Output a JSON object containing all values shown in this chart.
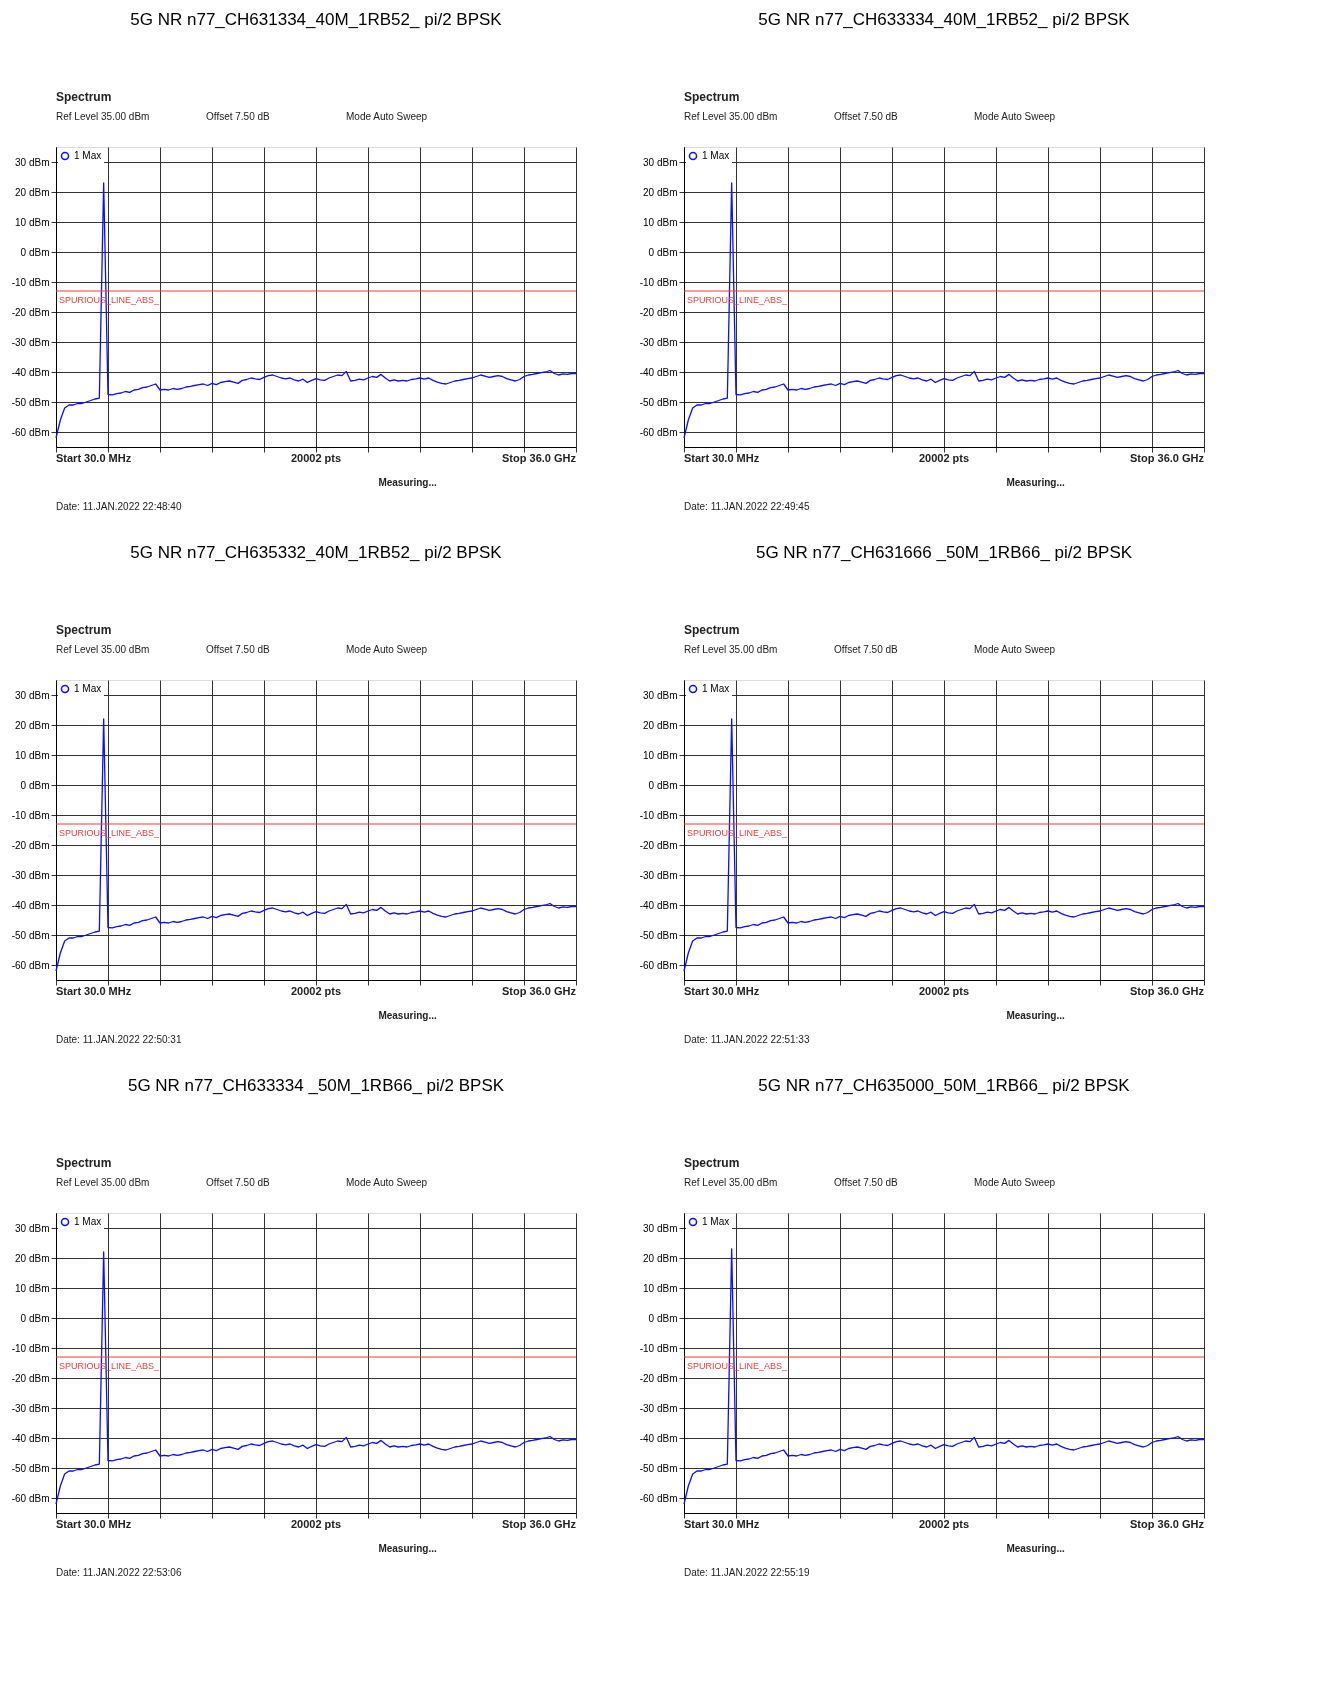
{
  "chart_data": [
    {
      "type": "line",
      "title": "5G NR n77_CH631334_40M_1RB52_ pi/2 BPSK",
      "annotations": [
        "Spectrum",
        "Ref Level 35.00 dBm",
        "Offset 7.50 dB",
        "Mode Auto Sweep",
        "Start 30.0 MHz",
        "20002 pts",
        "Stop 36.0 GHz",
        "Measuring...",
        "Date: 11.JAN.2022 22:48:40"
      ],
      "tick_labels": "y",
      "ylim": [
        -65,
        35
      ],
      "yticks": [
        {
          "value": 30,
          "label": "30 dBm"
        },
        {
          "value": 20,
          "label": "20 dBm"
        },
        {
          "value": 10,
          "label": "10 dBm"
        },
        {
          "value": 0,
          "label": "0 dBm"
        },
        {
          "value": -10,
          "label": "-10 dBm"
        },
        {
          "value": -20,
          "label": "-20 dBm"
        },
        {
          "value": -30,
          "label": "-30 dBm"
        },
        {
          "value": -40,
          "label": "-40 dBm"
        },
        {
          "value": -50,
          "label": "-50 dBm"
        },
        {
          "value": -60,
          "label": "-60 dBm"
        }
      ],
      "grid": true,
      "legend": "top left",
      "ref_lines": [
        {
          "axis": "y",
          "value": -13,
          "label": "SPURIOUS_LINE_ABS_",
          "color": "#f03c3c"
        }
      ],
      "categories": [
        null,
        null,
        null,
        null,
        null,
        null,
        null,
        null,
        null,
        null,
        null,
        null,
        null,
        null,
        null,
        null,
        null,
        null,
        null,
        null,
        null,
        null,
        null,
        null,
        null,
        null,
        null,
        null,
        null,
        null,
        null,
        null,
        null,
        null,
        null,
        null,
        null,
        null,
        null,
        null,
        null,
        null,
        null,
        null,
        null,
        null,
        null,
        null,
        null,
        null,
        null,
        null,
        null,
        null,
        null,
        null,
        null,
        null,
        null,
        null,
        null,
        null,
        null,
        null,
        null,
        null,
        null,
        null,
        null,
        null,
        null,
        null,
        null,
        null,
        null,
        null,
        null,
        null,
        null,
        null,
        null,
        null,
        null,
        null,
        null,
        null,
        null,
        null,
        null,
        null,
        null,
        null,
        null,
        null,
        null,
        null,
        null,
        null,
        null,
        null,
        null,
        null,
        null,
        null,
        null,
        null,
        null,
        null,
        null,
        null,
        null,
        null,
        null,
        null,
        null,
        null,
        null,
        null,
        null,
        null,
        null
      ],
      "series": [
        {
          "name": "1 Max",
          "color": "#0d0dff",
          "values": [
            -62,
            -56,
            -52,
            -51,
            -51,
            -50.5,
            -50.5,
            -50,
            -49.5,
            -49,
            -48.7,
            23,
            -47.5,
            -47.6,
            -47.2,
            -47,
            -46.5,
            -46.8,
            -46,
            -45.8,
            -45.2,
            -45,
            -44.5,
            -44,
            -46,
            -45.8,
            -46,
            -45.5,
            -45.8,
            -45.5,
            -45,
            -44.8,
            -44.5,
            -44.2,
            -44,
            -44.5,
            -43.8,
            -44.2,
            -43.5,
            -43.2,
            -43,
            -43.4,
            -43.8,
            -42.8,
            -42.5,
            -42,
            -42.3,
            -42.5,
            -41.8,
            -41.2,
            -41,
            -41.5,
            -42,
            -42.3,
            -42,
            -42.6,
            -43,
            -42.4,
            -43.5,
            -42.8,
            -42.2,
            -42.6,
            -42.8,
            -42,
            -41.5,
            -41,
            -41.2,
            -39.8,
            -43,
            -42.8,
            -42.4,
            -42.6,
            -42,
            -41.5,
            -41.8,
            -40.8,
            -42,
            -43,
            -42.6,
            -43,
            -42.8,
            -43,
            -42.5,
            -42.3,
            -42,
            -42.4,
            -42,
            -42.8,
            -43.4,
            -43.8,
            -44,
            -43.5,
            -43,
            -42.8,
            -42.5,
            -42.2,
            -42,
            -41.5,
            -41,
            -41.4,
            -41.8,
            -41.5,
            -41.2,
            -41.5,
            -42.2,
            -42.6,
            -43,
            -42.5,
            -41.5,
            -41,
            -40.8,
            -40.5,
            -40.2,
            -40,
            -39.5,
            -40.5,
            -41,
            -40.6,
            -40.8,
            -40.5,
            -40.5
          ]
        }
      ]
    },
    {
      "type": "line",
      "title": "5G NR n77_CH633334_40M_1RB52_ pi/2 BPSK",
      "annotations": [
        "Spectrum",
        "Ref Level 35.00 dBm",
        "Offset 7.50 dB",
        "Mode Auto Sweep",
        "Start 30.0 MHz",
        "20002 pts",
        "Stop 36.0 GHz",
        "Measuring...",
        "Date: 11.JAN.2022 22:49:45"
      ],
      "tick_labels": "y",
      "ylim": [
        -65,
        35
      ],
      "yticks": [
        {
          "value": 30,
          "label": "30 dBm"
        },
        {
          "value": 20,
          "label": "20 dBm"
        },
        {
          "value": 10,
          "label": "10 dBm"
        },
        {
          "value": 0,
          "label": "0 dBm"
        },
        {
          "value": -10,
          "label": "-10 dBm"
        },
        {
          "value": -20,
          "label": "-20 dBm"
        },
        {
          "value": -30,
          "label": "-30 dBm"
        },
        {
          "value": -40,
          "label": "-40 dBm"
        },
        {
          "value": -50,
          "label": "-50 dBm"
        },
        {
          "value": -60,
          "label": "-60 dBm"
        }
      ],
      "grid": true,
      "legend": "top left",
      "ref_lines": [
        {
          "axis": "y",
          "value": -13,
          "label": "SPURIOUS_LINE_ABS_",
          "color": "#f03c3c"
        }
      ],
      "categories": [
        null,
        null,
        null,
        null,
        null,
        null,
        null,
        null,
        null,
        null,
        null,
        null,
        null,
        null,
        null,
        null,
        null,
        null,
        null,
        null,
        null,
        null,
        null,
        null,
        null,
        null,
        null,
        null,
        null,
        null,
        null,
        null,
        null,
        null,
        null,
        null,
        null,
        null,
        null,
        null,
        null,
        null,
        null,
        null,
        null,
        null,
        null,
        null,
        null,
        null,
        null,
        null,
        null,
        null,
        null,
        null,
        null,
        null,
        null,
        null,
        null,
        null,
        null,
        null,
        null,
        null,
        null,
        null,
        null,
        null,
        null,
        null,
        null,
        null,
        null,
        null,
        null,
        null,
        null,
        null,
        null,
        null,
        null,
        null,
        null,
        null,
        null,
        null,
        null,
        null,
        null,
        null,
        null,
        null,
        null,
        null,
        null,
        null,
        null,
        null,
        null,
        null,
        null,
        null,
        null,
        null,
        null,
        null,
        null,
        null,
        null,
        null,
        null,
        null,
        null,
        null,
        null,
        null,
        null,
        null,
        null
      ],
      "series": [
        {
          "name": "1 Max",
          "color": "#0d0dff",
          "values": [
            -62,
            -56,
            -52,
            -51,
            -51,
            -50.5,
            -50.5,
            -50,
            -49.5,
            -49,
            -48.7,
            23,
            -47.5,
            -47.6,
            -47.2,
            -47,
            -46.5,
            -46.8,
            -46,
            -45.8,
            -45.2,
            -45,
            -44.5,
            -44,
            -46,
            -45.8,
            -46,
            -45.5,
            -45.8,
            -45.5,
            -45,
            -44.8,
            -44.5,
            -44.2,
            -44,
            -44.5,
            -43.8,
            -44.2,
            -43.5,
            -43.2,
            -43,
            -43.4,
            -43.8,
            -42.8,
            -42.5,
            -42,
            -42.3,
            -42.5,
            -41.8,
            -41.2,
            -41,
            -41.5,
            -42,
            -42.3,
            -42,
            -42.6,
            -43,
            -42.4,
            -43.5,
            -42.8,
            -42.2,
            -42.6,
            -42.8,
            -42,
            -41.5,
            -41,
            -41.2,
            -39.8,
            -43,
            -42.8,
            -42.4,
            -42.6,
            -42,
            -41.5,
            -41.8,
            -40.8,
            -42,
            -43,
            -42.6,
            -43,
            -42.8,
            -43,
            -42.5,
            -42.3,
            -42,
            -42.4,
            -42,
            -42.8,
            -43.4,
            -43.8,
            -44,
            -43.5,
            -43,
            -42.8,
            -42.5,
            -42.2,
            -42,
            -41.5,
            -41,
            -41.4,
            -41.8,
            -41.5,
            -41.2,
            -41.5,
            -42.2,
            -42.6,
            -43,
            -42.5,
            -41.5,
            -41,
            -40.8,
            -40.5,
            -40.2,
            -40,
            -39.5,
            -40.5,
            -41,
            -40.6,
            -40.8,
            -40.5,
            -40.5
          ]
        }
      ]
    },
    {
      "type": "line",
      "title": "5G NR n77_CH635332_40M_1RB52_ pi/2 BPSK",
      "annotations": [
        "Spectrum",
        "Ref Level 35.00 dBm",
        "Offset 7.50 dB",
        "Mode Auto Sweep",
        "Start 30.0 MHz",
        "20002 pts",
        "Stop 36.0 GHz",
        "Measuring...",
        "Date: 11.JAN.2022 22:50:31"
      ],
      "tick_labels": "y",
      "ylim": [
        -65,
        35
      ],
      "yticks": [
        {
          "value": 30,
          "label": "30 dBm"
        },
        {
          "value": 20,
          "label": "20 dBm"
        },
        {
          "value": 10,
          "label": "10 dBm"
        },
        {
          "value": 0,
          "label": "0 dBm"
        },
        {
          "value": -10,
          "label": "-10 dBm"
        },
        {
          "value": -20,
          "label": "-20 dBm"
        },
        {
          "value": -30,
          "label": "-30 dBm"
        },
        {
          "value": -40,
          "label": "-40 dBm"
        },
        {
          "value": -50,
          "label": "-50 dBm"
        },
        {
          "value": -60,
          "label": "-60 dBm"
        }
      ],
      "grid": true,
      "legend": "top left",
      "ref_lines": [
        {
          "axis": "y",
          "value": -13,
          "label": "SPURIOUS_LINE_ABS_",
          "color": "#f03c3c"
        }
      ],
      "categories": [
        null,
        null,
        null,
        null,
        null,
        null,
        null,
        null,
        null,
        null,
        null,
        null,
        null,
        null,
        null,
        null,
        null,
        null,
        null,
        null,
        null,
        null,
        null,
        null,
        null,
        null,
        null,
        null,
        null,
        null,
        null,
        null,
        null,
        null,
        null,
        null,
        null,
        null,
        null,
        null,
        null,
        null,
        null,
        null,
        null,
        null,
        null,
        null,
        null,
        null,
        null,
        null,
        null,
        null,
        null,
        null,
        null,
        null,
        null,
        null,
        null,
        null,
        null,
        null,
        null,
        null,
        null,
        null,
        null,
        null,
        null,
        null,
        null,
        null,
        null,
        null,
        null,
        null,
        null,
        null,
        null,
        null,
        null,
        null,
        null,
        null,
        null,
        null,
        null,
        null,
        null,
        null,
        null,
        null,
        null,
        null,
        null,
        null,
        null,
        null,
        null,
        null,
        null,
        null,
        null,
        null,
        null,
        null,
        null,
        null,
        null,
        null,
        null,
        null,
        null,
        null,
        null,
        null,
        null,
        null,
        null
      ],
      "series": [
        {
          "name": "1 Max",
          "color": "#0d0dff",
          "values": [
            -62,
            -56,
            -52,
            -51,
            -51,
            -50.5,
            -50.5,
            -50,
            -49.5,
            -49,
            -48.7,
            22,
            -47.5,
            -47.6,
            -47.2,
            -47,
            -46.5,
            -46.8,
            -46,
            -45.8,
            -45.2,
            -45,
            -44.5,
            -44,
            -46,
            -45.8,
            -46,
            -45.5,
            -45.8,
            -45.5,
            -45,
            -44.8,
            -44.5,
            -44.2,
            -44,
            -44.5,
            -43.8,
            -44.2,
            -43.5,
            -43.2,
            -43,
            -43.4,
            -43.8,
            -42.8,
            -42.5,
            -42,
            -42.3,
            -42.5,
            -41.8,
            -41.2,
            -41,
            -41.5,
            -42,
            -42.3,
            -42,
            -42.6,
            -43,
            -42.4,
            -43.5,
            -42.8,
            -42.2,
            -42.6,
            -42.8,
            -42,
            -41.5,
            -41,
            -41.2,
            -39.8,
            -43,
            -42.8,
            -42.4,
            -42.6,
            -42,
            -41.5,
            -41.8,
            -40.8,
            -42,
            -43,
            -42.6,
            -43,
            -42.8,
            -43,
            -42.5,
            -42.3,
            -42,
            -42.4,
            -42,
            -42.8,
            -43.4,
            -43.8,
            -44,
            -43.5,
            -43,
            -42.8,
            -42.5,
            -42.2,
            -42,
            -41.5,
            -41,
            -41.4,
            -41.8,
            -41.5,
            -41.2,
            -41.5,
            -42.2,
            -42.6,
            -43,
            -42.5,
            -41.5,
            -41,
            -40.8,
            -40.5,
            -40.2,
            -40,
            -39.5,
            -40.5,
            -41,
            -40.6,
            -40.8,
            -40.5,
            -40.5
          ]
        }
      ]
    },
    {
      "type": "line",
      "title": "5G NR n77_CH631666 _50M_1RB66_ pi/2 BPSK",
      "annotations": [
        "Spectrum",
        "Ref Level 35.00 dBm",
        "Offset 7.50 dB",
        "Mode Auto Sweep",
        "Start 30.0 MHz",
        "20002 pts",
        "Stop 36.0 GHz",
        "Measuring...",
        "Date: 11.JAN.2022 22:51:33"
      ],
      "tick_labels": "y",
      "ylim": [
        -65,
        35
      ],
      "yticks": [
        {
          "value": 30,
          "label": "30 dBm"
        },
        {
          "value": 20,
          "label": "20 dBm"
        },
        {
          "value": 10,
          "label": "10 dBm"
        },
        {
          "value": 0,
          "label": "0 dBm"
        },
        {
          "value": -10,
          "label": "-10 dBm"
        },
        {
          "value": -20,
          "label": "-20 dBm"
        },
        {
          "value": -30,
          "label": "-30 dBm"
        },
        {
          "value": -40,
          "label": "-40 dBm"
        },
        {
          "value": -50,
          "label": "-50 dBm"
        },
        {
          "value": -60,
          "label": "-60 dBm"
        }
      ],
      "grid": true,
      "legend": "top left",
      "ref_lines": [
        {
          "axis": "y",
          "value": -13,
          "label": "SPURIOUS_LINE_ABS_",
          "color": "#f03c3c"
        }
      ],
      "categories": [
        null,
        null,
        null,
        null,
        null,
        null,
        null,
        null,
        null,
        null,
        null,
        null,
        null,
        null,
        null,
        null,
        null,
        null,
        null,
        null,
        null,
        null,
        null,
        null,
        null,
        null,
        null,
        null,
        null,
        null,
        null,
        null,
        null,
        null,
        null,
        null,
        null,
        null,
        null,
        null,
        null,
        null,
        null,
        null,
        null,
        null,
        null,
        null,
        null,
        null,
        null,
        null,
        null,
        null,
        null,
        null,
        null,
        null,
        null,
        null,
        null,
        null,
        null,
        null,
        null,
        null,
        null,
        null,
        null,
        null,
        null,
        null,
        null,
        null,
        null,
        null,
        null,
        null,
        null,
        null,
        null,
        null,
        null,
        null,
        null,
        null,
        null,
        null,
        null,
        null,
        null,
        null,
        null,
        null,
        null,
        null,
        null,
        null,
        null,
        null,
        null,
        null,
        null,
        null,
        null,
        null,
        null,
        null,
        null,
        null,
        null,
        null,
        null,
        null,
        null,
        null,
        null,
        null,
        null,
        null,
        null
      ],
      "series": [
        {
          "name": "1 Max",
          "color": "#0d0dff",
          "values": [
            -62,
            -56,
            -52,
            -51,
            -51,
            -50.5,
            -50.5,
            -50,
            -49.5,
            -49,
            -48.7,
            22,
            -47.5,
            -47.6,
            -47.2,
            -47,
            -46.5,
            -46.8,
            -46,
            -45.8,
            -45.2,
            -45,
            -44.5,
            -44,
            -46,
            -45.8,
            -46,
            -45.5,
            -45.8,
            -45.5,
            -45,
            -44.8,
            -44.5,
            -44.2,
            -44,
            -44.5,
            -43.8,
            -44.2,
            -43.5,
            -43.2,
            -43,
            -43.4,
            -43.8,
            -42.8,
            -42.5,
            -42,
            -42.3,
            -42.5,
            -41.8,
            -41.2,
            -41,
            -41.5,
            -42,
            -42.3,
            -42,
            -42.6,
            -43,
            -42.4,
            -43.5,
            -42.8,
            -42.2,
            -42.6,
            -42.8,
            -42,
            -41.5,
            -41,
            -41.2,
            -39.8,
            -43,
            -42.8,
            -42.4,
            -42.6,
            -42,
            -41.5,
            -41.8,
            -40.8,
            -42,
            -43,
            -42.6,
            -43,
            -42.8,
            -43,
            -42.5,
            -42.3,
            -42,
            -42.4,
            -42,
            -42.8,
            -43.4,
            -43.8,
            -44,
            -43.5,
            -43,
            -42.8,
            -42.5,
            -42.2,
            -42,
            -41.5,
            -41,
            -41.4,
            -41.8,
            -41.5,
            -41.2,
            -41.5,
            -42.2,
            -42.6,
            -43,
            -42.5,
            -41.5,
            -41,
            -40.8,
            -40.5,
            -40.2,
            -40,
            -39.5,
            -40.5,
            -41,
            -40.6,
            -40.8,
            -40.5,
            -40.5
          ]
        }
      ]
    },
    {
      "type": "line",
      "title": "5G NR n77_CH633334 _50M_1RB66_ pi/2 BPSK",
      "annotations": [
        "Spectrum",
        "Ref Level 35.00 dBm",
        "Offset 7.50 dB",
        "Mode Auto Sweep",
        "Start 30.0 MHz",
        "20002 pts",
        "Stop 36.0 GHz",
        "Measuring...",
        "Date: 11.JAN.2022 22:53:06"
      ],
      "tick_labels": "y",
      "ylim": [
        -65,
        35
      ],
      "yticks": [
        {
          "value": 30,
          "label": "30 dBm"
        },
        {
          "value": 20,
          "label": "20 dBm"
        },
        {
          "value": 10,
          "label": "10 dBm"
        },
        {
          "value": 0,
          "label": "0 dBm"
        },
        {
          "value": -10,
          "label": "-10 dBm"
        },
        {
          "value": -20,
          "label": "-20 dBm"
        },
        {
          "value": -30,
          "label": "-30 dBm"
        },
        {
          "value": -40,
          "label": "-40 dBm"
        },
        {
          "value": -50,
          "label": "-50 dBm"
        },
        {
          "value": -60,
          "label": "-60 dBm"
        }
      ],
      "grid": true,
      "legend": "top left",
      "ref_lines": [
        {
          "axis": "y",
          "value": -13,
          "label": "SPURIOUS_LINE_ABS_",
          "color": "#f03c3c"
        }
      ],
      "categories": [
        null,
        null,
        null,
        null,
        null,
        null,
        null,
        null,
        null,
        null,
        null,
        null,
        null,
        null,
        null,
        null,
        null,
        null,
        null,
        null,
        null,
        null,
        null,
        null,
        null,
        null,
        null,
        null,
        null,
        null,
        null,
        null,
        null,
        null,
        null,
        null,
        null,
        null,
        null,
        null,
        null,
        null,
        null,
        null,
        null,
        null,
        null,
        null,
        null,
        null,
        null,
        null,
        null,
        null,
        null,
        null,
        null,
        null,
        null,
        null,
        null,
        null,
        null,
        null,
        null,
        null,
        null,
        null,
        null,
        null,
        null,
        null,
        null,
        null,
        null,
        null,
        null,
        null,
        null,
        null,
        null,
        null,
        null,
        null,
        null,
        null,
        null,
        null,
        null,
        null,
        null,
        null,
        null,
        null,
        null,
        null,
        null,
        null,
        null,
        null,
        null,
        null,
        null,
        null,
        null,
        null,
        null,
        null,
        null,
        null,
        null,
        null,
        null,
        null,
        null,
        null,
        null,
        null,
        null,
        null,
        null
      ],
      "series": [
        {
          "name": "1 Max",
          "color": "#0d0dff",
          "values": [
            -62,
            -56,
            -52,
            -51,
            -51,
            -50.5,
            -50.5,
            -50,
            -49.5,
            -49,
            -48.7,
            22,
            -47.5,
            -47.6,
            -47.2,
            -47,
            -46.5,
            -46.8,
            -46,
            -45.8,
            -45.2,
            -45,
            -44.5,
            -44,
            -46,
            -45.8,
            -46,
            -45.5,
            -45.8,
            -45.5,
            -45,
            -44.8,
            -44.5,
            -44.2,
            -44,
            -44.5,
            -43.8,
            -44.2,
            -43.5,
            -43.2,
            -43,
            -43.4,
            -43.8,
            -42.8,
            -42.5,
            -42,
            -42.3,
            -42.5,
            -41.8,
            -41.2,
            -41,
            -41.5,
            -42,
            -42.3,
            -42,
            -42.6,
            -43,
            -42.4,
            -43.5,
            -42.8,
            -42.2,
            -42.6,
            -42.8,
            -42,
            -41.5,
            -41,
            -41.2,
            -39.8,
            -43,
            -42.8,
            -42.4,
            -42.6,
            -42,
            -41.5,
            -41.8,
            -40.8,
            -42,
            -43,
            -42.6,
            -43,
            -42.8,
            -43,
            -42.5,
            -42.3,
            -42,
            -42.4,
            -42,
            -42.8,
            -43.4,
            -43.8,
            -44,
            -43.5,
            -43,
            -42.8,
            -42.5,
            -42.2,
            -42,
            -41.5,
            -41,
            -41.4,
            -41.8,
            -41.5,
            -41.2,
            -41.5,
            -42.2,
            -42.6,
            -43,
            -42.5,
            -41.5,
            -41,
            -40.8,
            -40.5,
            -40.2,
            -40,
            -39.5,
            -40.5,
            -41,
            -40.6,
            -40.8,
            -40.5,
            -40.5
          ]
        }
      ]
    },
    {
      "type": "line",
      "title": "5G NR n77_CH635000_50M_1RB66_ pi/2 BPSK",
      "annotations": [
        "Spectrum",
        "Ref Level 35.00 dBm",
        "Offset 7.50 dB",
        "Mode Auto Sweep",
        "Start 30.0 MHz",
        "20002 pts",
        "Stop 36.0 GHz",
        "Measuring...",
        "Date: 11.JAN.2022 22:55:19"
      ],
      "tick_labels": "y",
      "ylim": [
        -65,
        35
      ],
      "yticks": [
        {
          "value": 30,
          "label": "30 dBm"
        },
        {
          "value": 20,
          "label": "20 dBm"
        },
        {
          "value": 10,
          "label": "10 dBm"
        },
        {
          "value": 0,
          "label": "0 dBm"
        },
        {
          "value": -10,
          "label": "-10 dBm"
        },
        {
          "value": -20,
          "label": "-20 dBm"
        },
        {
          "value": -30,
          "label": "-30 dBm"
        },
        {
          "value": -40,
          "label": "-40 dBm"
        },
        {
          "value": -50,
          "label": "-50 dBm"
        },
        {
          "value": -60,
          "label": "-60 dBm"
        }
      ],
      "grid": true,
      "legend": "top left",
      "ref_lines": [
        {
          "axis": "y",
          "value": -13,
          "label": "SPURIOUS_LINE_ABS_",
          "color": "#f03c3c"
        }
      ],
      "categories": [
        null,
        null,
        null,
        null,
        null,
        null,
        null,
        null,
        null,
        null,
        null,
        null,
        null,
        null,
        null,
        null,
        null,
        null,
        null,
        null,
        null,
        null,
        null,
        null,
        null,
        null,
        null,
        null,
        null,
        null,
        null,
        null,
        null,
        null,
        null,
        null,
        null,
        null,
        null,
        null,
        null,
        null,
        null,
        null,
        null,
        null,
        null,
        null,
        null,
        null,
        null,
        null,
        null,
        null,
        null,
        null,
        null,
        null,
        null,
        null,
        null,
        null,
        null,
        null,
        null,
        null,
        null,
        null,
        null,
        null,
        null,
        null,
        null,
        null,
        null,
        null,
        null,
        null,
        null,
        null,
        null,
        null,
        null,
        null,
        null,
        null,
        null,
        null,
        null,
        null,
        null,
        null,
        null,
        null,
        null,
        null,
        null,
        null,
        null,
        null,
        null,
        null,
        null,
        null,
        null,
        null,
        null,
        null,
        null,
        null,
        null,
        null,
        null,
        null,
        null,
        null,
        null,
        null,
        null,
        null,
        null
      ],
      "series": [
        {
          "name": "1 Max",
          "color": "#0d0dff",
          "values": [
            -62,
            -56,
            -52,
            -51,
            -51,
            -50.5,
            -50.5,
            -50,
            -49.5,
            -49,
            -48.7,
            23,
            -47.5,
            -47.6,
            -47.2,
            -47,
            -46.5,
            -46.8,
            -46,
            -45.8,
            -45.2,
            -45,
            -44.5,
            -44,
            -46,
            -45.8,
            -46,
            -45.5,
            -45.8,
            -45.5,
            -45,
            -44.8,
            -44.5,
            -44.2,
            -44,
            -44.5,
            -43.8,
            -44.2,
            -43.5,
            -43.2,
            -43,
            -43.4,
            -43.8,
            -42.8,
            -42.5,
            -42,
            -42.3,
            -42.5,
            -41.8,
            -41.2,
            -41,
            -41.5,
            -42,
            -42.3,
            -42,
            -42.6,
            -43,
            -42.4,
            -43.5,
            -42.8,
            -42.2,
            -42.6,
            -42.8,
            -42,
            -41.5,
            -41,
            -41.2,
            -39.8,
            -43,
            -42.8,
            -42.4,
            -42.6,
            -42,
            -41.5,
            -41.8,
            -40.8,
            -42,
            -43,
            -42.6,
            -43,
            -42.8,
            -43,
            -42.5,
            -42.3,
            -42,
            -42.4,
            -42,
            -42.8,
            -43.4,
            -43.8,
            -44,
            -43.5,
            -43,
            -42.8,
            -42.5,
            -42.2,
            -42,
            -41.5,
            -41,
            -41.4,
            -41.8,
            -41.5,
            -41.2,
            -41.5,
            -42.2,
            -42.6,
            -43,
            -42.5,
            -41.5,
            -41,
            -40.8,
            -40.5,
            -40.2,
            -40,
            -39.5,
            -40.5,
            -41,
            -40.6,
            -40.8,
            -40.5,
            -40.5
          ]
        }
      ]
    }
  ]
}
